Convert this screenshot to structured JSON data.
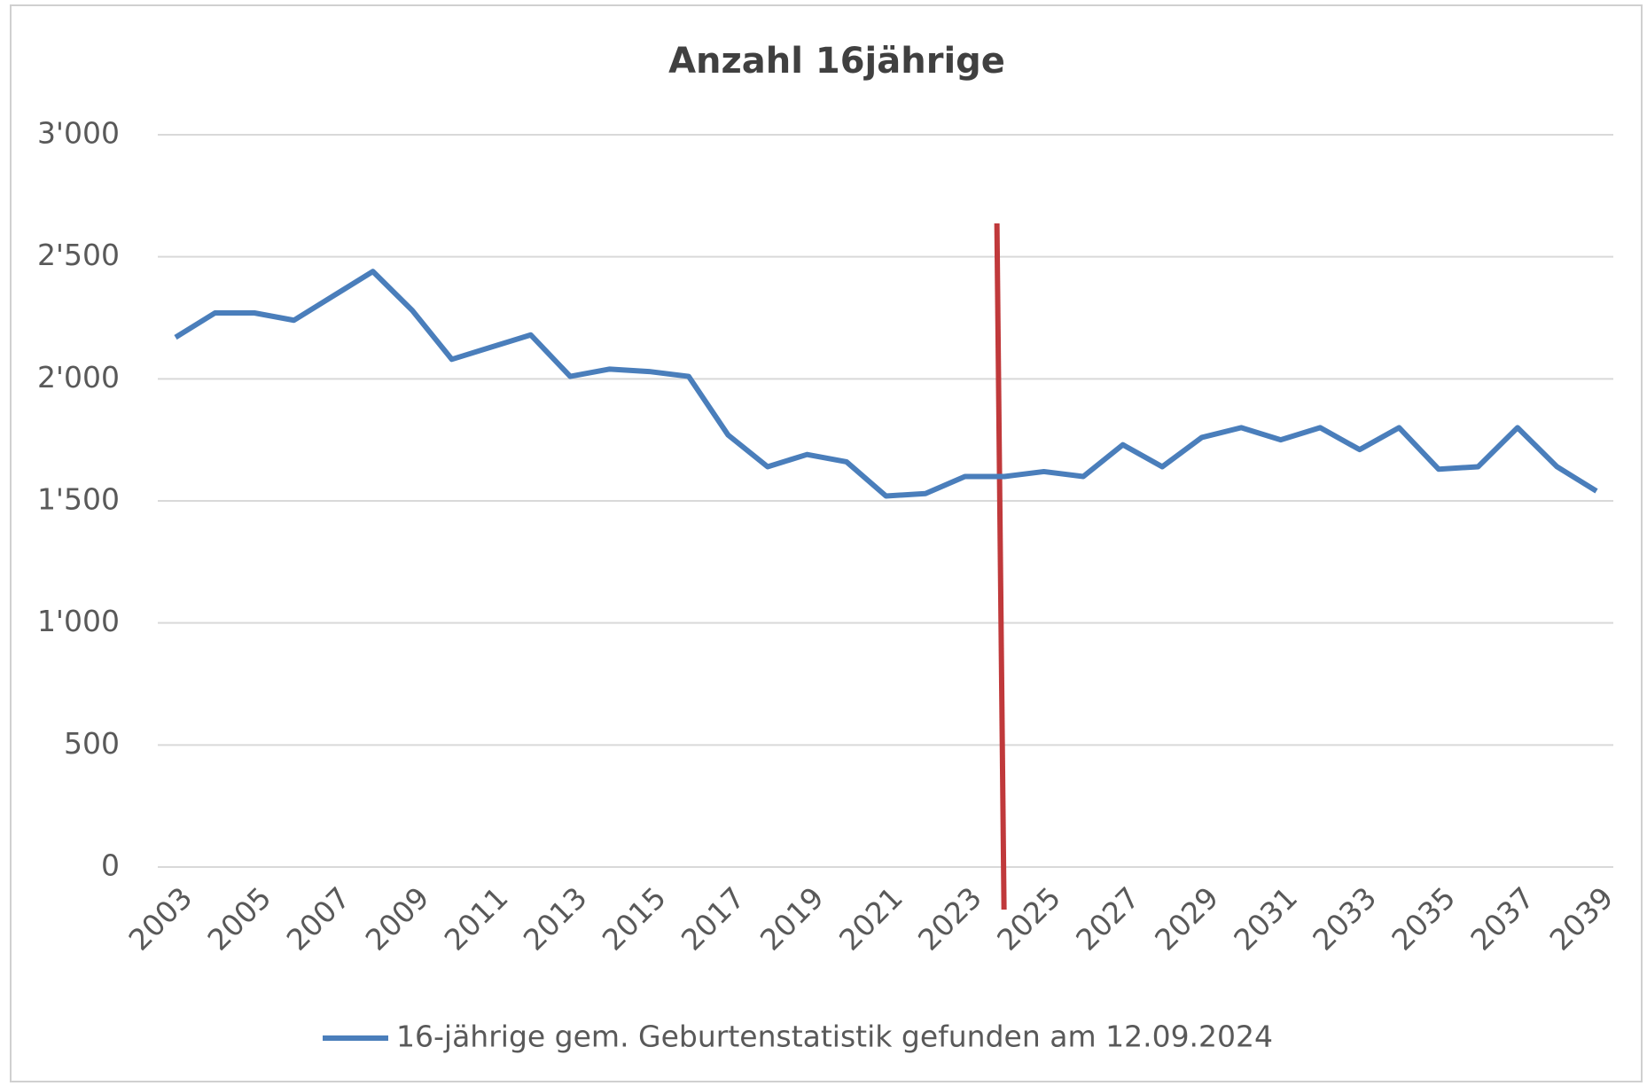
{
  "chart_data": {
    "type": "line",
    "title": "Anzahl 16jährige",
    "x": [
      2003,
      2004,
      2005,
      2006,
      2007,
      2008,
      2009,
      2010,
      2011,
      2012,
      2013,
      2014,
      2015,
      2016,
      2017,
      2018,
      2019,
      2020,
      2021,
      2022,
      2023,
      2024,
      2025,
      2026,
      2027,
      2028,
      2029,
      2030,
      2031,
      2032,
      2033,
      2034,
      2035,
      2036,
      2037,
      2038,
      2039
    ],
    "xlim": [
      2003,
      2039
    ],
    "xticks": [
      2003,
      2005,
      2007,
      2009,
      2011,
      2013,
      2015,
      2017,
      2019,
      2021,
      2023,
      2025,
      2027,
      2029,
      2031,
      2033,
      2035,
      2037,
      2039
    ],
    "series": [
      {
        "name": "16-jährige gem. Geburtenstatistik gefunden am 12.09.2024",
        "color": "#4a7ebb",
        "values": [
          2170,
          2270,
          2270,
          2240,
          2340,
          2440,
          2280,
          2080,
          2130,
          2180,
          2010,
          2040,
          2030,
          2010,
          1770,
          1640,
          1690,
          1660,
          1520,
          1530,
          1600,
          1600,
          1620,
          1600,
          1730,
          1640,
          1760,
          1800,
          1750,
          1800,
          1710,
          1800,
          1630,
          1640,
          1800,
          1640,
          1540
        ]
      }
    ],
    "ylim": [
      0,
      3000
    ],
    "yticks": [
      0,
      500,
      {
        "value": 1000,
        "label": "1'000"
      },
      {
        "value": 1500,
        "label": "1'500"
      },
      {
        "value": 2000,
        "label": "2'000"
      },
      {
        "value": 2500,
        "label": "2'500"
      },
      {
        "value": 3000,
        "label": "3'000"
      }
    ],
    "grid": true,
    "legend": "bottom",
    "vline": {
      "x": 2023.9,
      "color": "#c0393b"
    }
  }
}
